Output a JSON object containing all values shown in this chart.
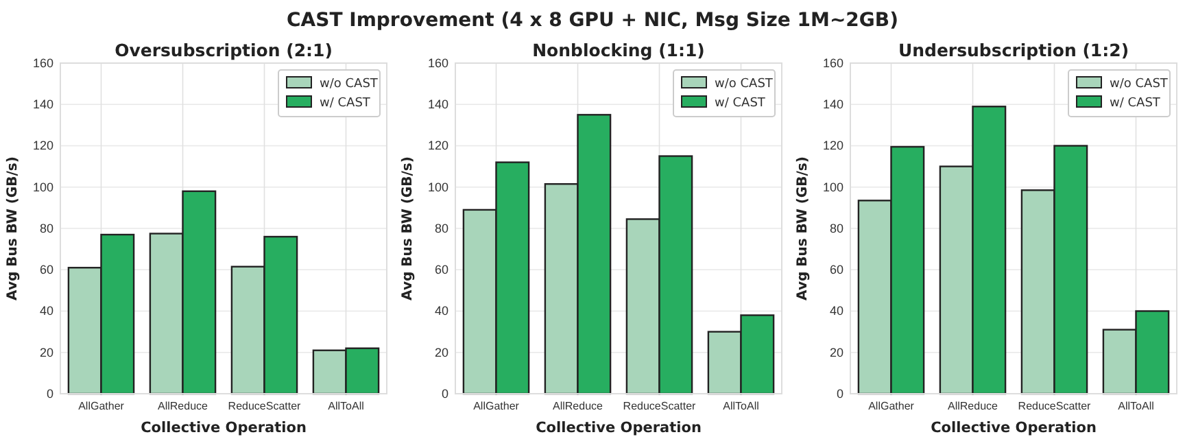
{
  "chart_data": [
    {
      "type": "bar",
      "title": "Oversubscription (2:1)",
      "xlabel": "Collective Operation",
      "ylabel": "Avg Bus BW (GB/s)",
      "categories": [
        "AllGather",
        "AllReduce",
        "ReduceScatter",
        "AllToAll"
      ],
      "series": [
        {
          "name": "w/o CAST",
          "color": "#a8d5ba",
          "values": [
            61,
            77.5,
            61.5,
            21
          ]
        },
        {
          "name": "w/ CAST",
          "color": "#27ae60",
          "values": [
            77,
            98,
            76,
            22
          ]
        }
      ],
      "ylim": [
        0,
        160
      ],
      "yticks": [
        0,
        20,
        40,
        60,
        80,
        100,
        120,
        140,
        160
      ],
      "grid": true,
      "legend": "top right",
      "annotations": [
        "CAST Improvement (4 x 8 GPU + NIC, Msg Size 1M~2GB)"
      ]
    },
    {
      "type": "bar",
      "title": "Nonblocking (1:1)",
      "xlabel": "Collective Operation",
      "ylabel": "Avg Bus BW (GB/s)",
      "categories": [
        "AllGather",
        "AllReduce",
        "ReduceScatter",
        "AllToAll"
      ],
      "series": [
        {
          "name": "w/o CAST",
          "color": "#a8d5ba",
          "values": [
            89,
            101.5,
            84.5,
            30
          ]
        },
        {
          "name": "w/ CAST",
          "color": "#27ae60",
          "values": [
            112,
            135,
            115,
            38
          ]
        }
      ],
      "ylim": [
        0,
        160
      ],
      "yticks": [
        0,
        20,
        40,
        60,
        80,
        100,
        120,
        140,
        160
      ],
      "grid": true,
      "legend": "top right"
    },
    {
      "type": "bar",
      "title": "Undersubscription (1:2)",
      "xlabel": "Collective Operation",
      "ylabel": "Avg Bus BW (GB/s)",
      "categories": [
        "AllGather",
        "AllReduce",
        "ReduceScatter",
        "AllToAll"
      ],
      "series": [
        {
          "name": "w/o CAST",
          "color": "#a8d5ba",
          "values": [
            93.5,
            110,
            98.5,
            31
          ]
        },
        {
          "name": "w/ CAST",
          "color": "#27ae60",
          "values": [
            119.5,
            139,
            120,
            40
          ]
        }
      ],
      "ylim": [
        0,
        160
      ],
      "yticks": [
        0,
        20,
        40,
        60,
        80,
        100,
        120,
        140,
        160
      ],
      "grid": true,
      "legend": "top right"
    }
  ]
}
